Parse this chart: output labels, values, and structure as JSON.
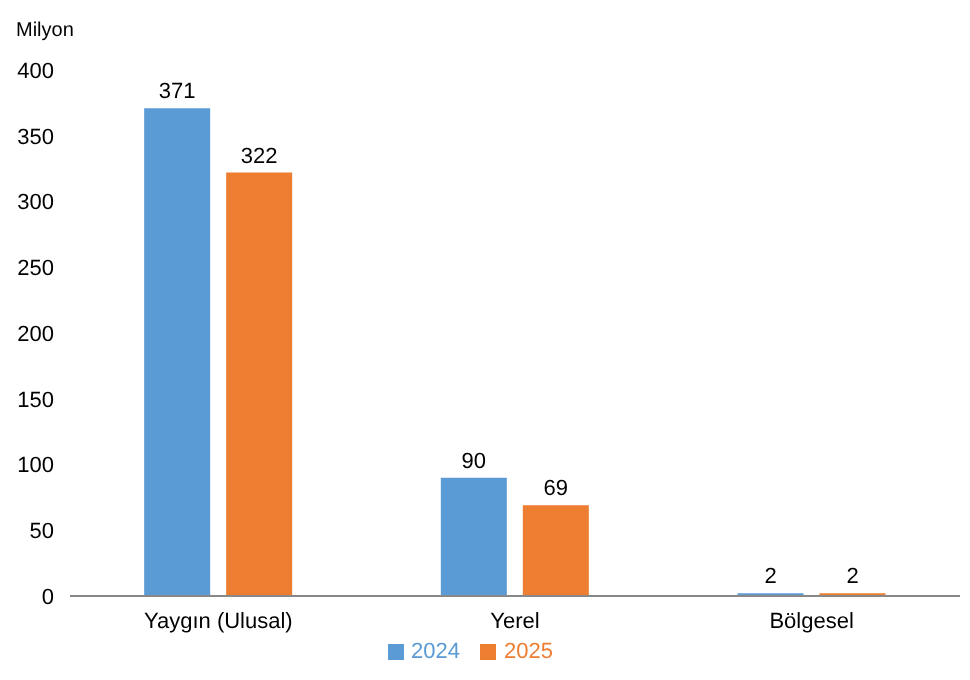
{
  "chart_data": {
    "type": "bar",
    "ylabel": "Milyon",
    "categories": [
      "Yaygın (Ulusal)",
      "Yerel",
      "Bölgesel"
    ],
    "series": [
      {
        "name": "2024",
        "color": "#5b9bd5",
        "values": [
          371,
          90,
          2
        ]
      },
      {
        "name": "2025",
        "color": "#ed7d31",
        "values": [
          322,
          69,
          2
        ]
      }
    ],
    "ylim": [
      0,
      400
    ],
    "yticks": [
      0,
      50,
      100,
      150,
      200,
      250,
      300,
      350,
      400
    ],
    "data_labels": true,
    "legend": "bottom",
    "grid": false
  }
}
